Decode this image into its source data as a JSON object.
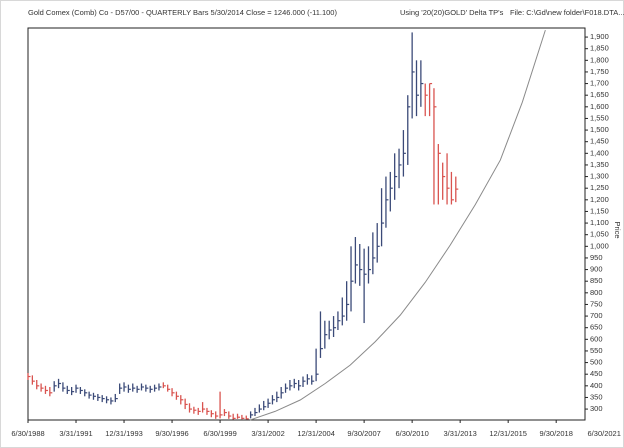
{
  "chart_data": {
    "type": "ohlc",
    "title": "Gold Comex (Comb) Co - D57/00  - QUARTERLY Bars  5/30/2014 Close = 1246.000 (-11.100)",
    "annotations": [
      "Using '20(20)GOLD' Delta TP's",
      "File: C:\\Gd\\new folder\\F018.DTA..."
    ],
    "ylabel": "Price",
    "xlim": [
      1988.5,
      2020.4
    ],
    "xticks": [
      {
        "value": 1988.5,
        "label": "6/30/1988"
      },
      {
        "value": 1991.25,
        "label": "3/31/1991"
      },
      {
        "value": 1994.0,
        "label": "12/31/1993"
      },
      {
        "value": 1996.75,
        "label": "9/30/1996"
      },
      {
        "value": 1999.5,
        "label": "6/30/1999"
      },
      {
        "value": 2002.25,
        "label": "3/31/2002"
      },
      {
        "value": 2005.0,
        "label": "12/31/2004"
      },
      {
        "value": 2007.75,
        "label": "9/30/2007"
      },
      {
        "value": 2010.5,
        "label": "6/30/2010"
      },
      {
        "value": 2013.25,
        "label": "3/31/2013"
      },
      {
        "value": 2016.0,
        "label": "12/31/2015"
      },
      {
        "value": 2018.75,
        "label": "9/30/2018"
      },
      {
        "value": 2021.5,
        "label": "6/30/2021"
      }
    ],
    "ylim": [
      253,
      1939
    ],
    "yticks": [
      300,
      350,
      400,
      450,
      500,
      550,
      600,
      650,
      700,
      750,
      800,
      850,
      900,
      950,
      {
        "value": 1000,
        "label": "1,000"
      },
      {
        "value": 1050,
        "label": "1,050"
      },
      {
        "value": 1100,
        "label": "1,100"
      },
      {
        "value": 1150,
        "label": "1,150"
      },
      {
        "value": 1200,
        "label": "1,200"
      },
      {
        "value": 1250,
        "label": "1,250"
      },
      {
        "value": 1300,
        "label": "1,300"
      },
      {
        "value": 1350,
        "label": "1,350"
      },
      {
        "value": 1400,
        "label": "1,400"
      },
      {
        "value": 1450,
        "label": "1,450"
      },
      {
        "value": 1500,
        "label": "1,500"
      },
      {
        "value": 1550,
        "label": "1,550"
      },
      {
        "value": 1600,
        "label": "1,600"
      },
      {
        "value": 1650,
        "label": "1,650"
      },
      {
        "value": 1700,
        "label": "1,700"
      },
      {
        "value": 1750,
        "label": "1,750"
      },
      {
        "value": 1800,
        "label": "1,800"
      },
      {
        "value": 1850,
        "label": "1,850"
      },
      {
        "value": 1900,
        "label": "1,900"
      }
    ],
    "series": [
      {
        "color": "#d9534f",
        "x": [
          1988.5,
          1988.75,
          1989,
          1989.25,
          1989.5,
          1989.75
        ],
        "high": [
          455,
          445,
          425,
          410,
          400,
          395
        ],
        "low": [
          425,
          405,
          385,
          375,
          365,
          355
        ],
        "close": [
          440,
          420,
          400,
          390,
          380,
          370
        ]
      },
      {
        "color": "#3b4a78",
        "x": [
          1990,
          1990.25,
          1990.5,
          1990.75,
          1991,
          1991.25,
          1991.5,
          1991.75,
          1992,
          1992.25,
          1992.5,
          1992.75,
          1993,
          1993.25,
          1993.5,
          1993.75,
          1994,
          1994.25,
          1994.5,
          1994.75,
          1995,
          1995.25,
          1995.5,
          1995.75,
          1996
        ],
        "high": [
          420,
          430,
          415,
          400,
          395,
          405,
          395,
          385,
          375,
          370,
          365,
          360,
          355,
          350,
          365,
          410,
          415,
          405,
          410,
          400,
          410,
          405,
          400,
          405,
          410
        ],
        "low": [
          375,
          390,
          375,
          365,
          360,
          370,
          365,
          355,
          345,
          340,
          335,
          330,
          325,
          320,
          330,
          365,
          375,
          370,
          375,
          370,
          380,
          375,
          370,
          375,
          380
        ],
        "close": [
          400,
          410,
          390,
          380,
          375,
          390,
          380,
          370,
          360,
          355,
          350,
          345,
          340,
          335,
          345,
          390,
          395,
          385,
          390,
          385,
          395,
          390,
          385,
          390,
          395
        ]
      },
      {
        "color": "#d9534f",
        "x": [
          1996.25,
          1996.5,
          1996.75,
          1997,
          1997.25,
          1997.5,
          1997.75,
          1998,
          1998.25,
          1998.5,
          1998.75,
          1999,
          1999.25,
          1999.5,
          1999.75,
          2000,
          2000.25,
          2000.5,
          2000.75,
          2001
        ],
        "high": [
          415,
          405,
          390,
          375,
          360,
          345,
          325,
          310,
          305,
          330,
          305,
          295,
          290,
          375,
          300,
          290,
          280,
          280,
          275,
          272
        ],
        "low": [
          390,
          375,
          355,
          340,
          320,
          300,
          285,
          280,
          275,
          285,
          275,
          265,
          258,
          260,
          270,
          258,
          255,
          258,
          256,
          256
        ],
        "close": [
          400,
          385,
          370,
          355,
          340,
          320,
          300,
          295,
          290,
          300,
          290,
          280,
          270,
          275,
          285,
          270,
          260,
          265,
          260,
          258
        ]
      },
      {
        "color": "#3b4a78",
        "x": [
          2001.25,
          2001.5,
          2001.75,
          2002,
          2002.25,
          2002.5,
          2002.75,
          2003,
          2003.25,
          2003.5,
          2003.75,
          2004,
          2004.25,
          2004.5,
          2004.75,
          2005,
          2005.25,
          2005.5,
          2005.75,
          2006,
          2006.25,
          2006.5,
          2006.75,
          2007,
          2007.25,
          2007.5,
          2007.75,
          2008,
          2008.25,
          2008.5,
          2008.75,
          2009,
          2009.25,
          2009.5,
          2009.75,
          2010,
          2010.25,
          2010.5,
          2010.75,
          2011
        ],
        "high": [
          290,
          305,
          320,
          335,
          345,
          360,
          375,
          395,
          410,
          425,
          430,
          425,
          440,
          450,
          445,
          560,
          720,
          680,
          680,
          700,
          720,
          780,
          850,
          1000,
          1040,
          1010,
          990,
          1000,
          1060,
          1100,
          1250,
          1300,
          1320,
          1400,
          1420,
          1500,
          1650,
          1920,
          1800,
          1800
        ],
        "low": [
          260,
          270,
          285,
          295,
          305,
          320,
          330,
          345,
          370,
          380,
          390,
          380,
          395,
          405,
          405,
          420,
          520,
          560,
          600,
          610,
          640,
          660,
          680,
          720,
          840,
          830,
          670,
          840,
          880,
          930,
          1000,
          1080,
          1150,
          1200,
          1250,
          1300,
          1350,
          1550,
          1560,
          1600
        ],
        "close": [
          275,
          285,
          300,
          310,
          325,
          340,
          350,
          370,
          390,
          400,
          410,
          400,
          420,
          430,
          420,
          450,
          560,
          620,
          640,
          650,
          680,
          700,
          750,
          850,
          920,
          900,
          880,
          900,
          950,
          1000,
          1100,
          1200,
          1250,
          1300,
          1350,
          1400,
          1600,
          1750,
          1650,
          1700
        ]
      },
      {
        "color": "#d9534f",
        "x": [
          2011.25,
          2011.5,
          2011.75,
          2012,
          2012.25,
          2012.5,
          2012.75,
          2013
        ],
        "high": [
          1700,
          1700,
          1680,
          1440,
          1360,
          1400,
          1320,
          1300
        ],
        "low": [
          1560,
          1560,
          1180,
          1180,
          1200,
          1180,
          1180,
          1190
        ],
        "close": [
          1650,
          1700,
          1600,
          1400,
          1300,
          1250,
          1200,
          1246
        ]
      }
    ],
    "curve": {
      "color": "#8a8a8a",
      "x": [
        2001.22,
        2002.65,
        2004.09,
        2005.52,
        2006.95,
        2008.39,
        2009.82,
        2011.25,
        2012.68,
        2014.12,
        2015.55,
        2016.81,
        2018.13
      ],
      "y": [
        253,
        290,
        339,
        410,
        489,
        590,
        704,
        845,
        1005,
        1180,
        1371,
        1620,
        1930
      ]
    }
  }
}
